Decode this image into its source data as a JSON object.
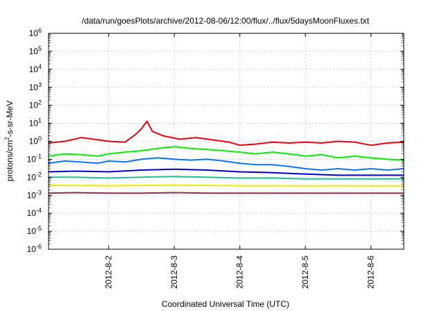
{
  "chart_data": {
    "type": "line",
    "title": "/data/run/goesPlots/archive/2012-08-06/12:00/flux/../flux/5daysMoonFluxes.txt",
    "xlabel": "Coordinated Universal Time (UTC)",
    "ylabel_parts": {
      "base": "protons/cm",
      "sup": "2",
      "rest": "-s-sr-MeV"
    },
    "y_scale": "log",
    "ylim": [
      1e-06,
      1000000.0
    ],
    "y_ticks": [
      {
        "value": 1e-06,
        "base": "10",
        "exp": "-6"
      },
      {
        "value": 1e-05,
        "base": "10",
        "exp": "-5"
      },
      {
        "value": 0.0001,
        "base": "10",
        "exp": "-4"
      },
      {
        "value": 0.001,
        "base": "10",
        "exp": "-3"
      },
      {
        "value": 0.01,
        "base": "10",
        "exp": "-2"
      },
      {
        "value": 0.1,
        "base": "10",
        "exp": "-1"
      },
      {
        "value": 1.0,
        "base": "10",
        "exp": "0"
      },
      {
        "value": 10.0,
        "base": "10",
        "exp": "1"
      },
      {
        "value": 100.0,
        "base": "10",
        "exp": "2"
      },
      {
        "value": 1000.0,
        "base": "10",
        "exp": "3"
      },
      {
        "value": 10000.0,
        "base": "10",
        "exp": "4"
      },
      {
        "value": 100000.0,
        "base": "10",
        "exp": "5"
      },
      {
        "value": 1000000.0,
        "base": "10",
        "exp": "6"
      }
    ],
    "xlim": [
      "2012-08-01T02:00",
      "2012-08-06T12:00"
    ],
    "x_ticks": [
      {
        "value": "2012-08-02T00:00",
        "label": "2012-8-2"
      },
      {
        "value": "2012-08-03T00:00",
        "label": "2012-8-3"
      },
      {
        "value": "2012-08-04T00:00",
        "label": "2012-8-4"
      },
      {
        "value": "2012-08-05T00:00",
        "label": "2012-8-5"
      },
      {
        "value": "2012-08-06T00:00",
        "label": "2012-8-6"
      }
    ],
    "grid": true,
    "legend": "none",
    "series": [
      {
        "color": "#e8000b",
        "x": [
          "2012-08-01T02:00",
          "2012-08-01T08:00",
          "2012-08-01T14:00",
          "2012-08-01T20:00",
          "2012-08-02T00:00",
          "2012-08-02T06:00",
          "2012-08-02T10:00",
          "2012-08-02T12:00",
          "2012-08-02T14:00",
          "2012-08-02T16:00",
          "2012-08-02T20:00",
          "2012-08-03T02:00",
          "2012-08-03T08:00",
          "2012-08-03T14:00",
          "2012-08-03T20:00",
          "2012-08-04T00:00",
          "2012-08-04T06:00",
          "2012-08-04T12:00",
          "2012-08-04T18:00",
          "2012-08-05T00:00",
          "2012-08-05T06:00",
          "2012-08-05T12:00",
          "2012-08-05T18:00",
          "2012-08-06T00:00",
          "2012-08-06T06:00",
          "2012-08-06T12:00"
        ],
        "values": [
          0.8,
          1.0,
          1.6,
          1.2,
          1.0,
          0.9,
          2.5,
          5.0,
          13,
          3.5,
          2.0,
          1.3,
          1.6,
          1.2,
          0.9,
          0.6,
          0.7,
          0.9,
          0.8,
          0.9,
          0.8,
          1.0,
          0.9,
          0.6,
          0.8,
          0.9
        ]
      },
      {
        "color": "#00ee00",
        "x": [
          "2012-08-01T02:00",
          "2012-08-01T08:00",
          "2012-08-01T14:00",
          "2012-08-01T20:00",
          "2012-08-02T00:00",
          "2012-08-02T06:00",
          "2012-08-02T12:00",
          "2012-08-02T18:00",
          "2012-08-03T00:00",
          "2012-08-03T06:00",
          "2012-08-03T12:00",
          "2012-08-03T18:00",
          "2012-08-04T00:00",
          "2012-08-04T06:00",
          "2012-08-04T12:00",
          "2012-08-04T18:00",
          "2012-08-05T00:00",
          "2012-08-05T06:00",
          "2012-08-05T12:00",
          "2012-08-05T18:00",
          "2012-08-06T00:00",
          "2012-08-06T06:00",
          "2012-08-06T12:00"
        ],
        "values": [
          0.15,
          0.2,
          0.18,
          0.15,
          0.2,
          0.25,
          0.3,
          0.4,
          0.5,
          0.4,
          0.35,
          0.3,
          0.25,
          0.2,
          0.25,
          0.2,
          0.15,
          0.18,
          0.12,
          0.15,
          0.12,
          0.1,
          0.09
        ]
      },
      {
        "color": "#0a74ff",
        "x": [
          "2012-08-01T02:00",
          "2012-08-01T08:00",
          "2012-08-01T14:00",
          "2012-08-01T20:00",
          "2012-08-02T00:00",
          "2012-08-02T06:00",
          "2012-08-02T12:00",
          "2012-08-02T18:00",
          "2012-08-03T00:00",
          "2012-08-03T06:00",
          "2012-08-03T12:00",
          "2012-08-03T18:00",
          "2012-08-04T00:00",
          "2012-08-04T06:00",
          "2012-08-04T12:00",
          "2012-08-04T18:00",
          "2012-08-05T00:00",
          "2012-08-05T06:00",
          "2012-08-05T12:00",
          "2012-08-05T18:00",
          "2012-08-06T00:00",
          "2012-08-06T06:00",
          "2012-08-06T12:00"
        ],
        "values": [
          0.06,
          0.08,
          0.07,
          0.06,
          0.08,
          0.07,
          0.1,
          0.12,
          0.1,
          0.09,
          0.1,
          0.08,
          0.06,
          0.05,
          0.05,
          0.04,
          0.03,
          0.025,
          0.03,
          0.025,
          0.03,
          0.025,
          0.03
        ]
      },
      {
        "color": "#0000cc",
        "x": [
          "2012-08-01T02:00",
          "2012-08-01T12:00",
          "2012-08-02T00:00",
          "2012-08-02T12:00",
          "2012-08-03T00:00",
          "2012-08-03T12:00",
          "2012-08-04T00:00",
          "2012-08-04T12:00",
          "2012-08-05T00:00",
          "2012-08-05T12:00",
          "2012-08-06T00:00",
          "2012-08-06T12:00"
        ],
        "values": [
          0.02,
          0.022,
          0.02,
          0.025,
          0.028,
          0.025,
          0.02,
          0.018,
          0.015,
          0.013,
          0.013,
          0.013
        ]
      },
      {
        "color": "#1fbf9a",
        "x": [
          "2012-08-01T02:00",
          "2012-08-01T12:00",
          "2012-08-02T00:00",
          "2012-08-02T12:00",
          "2012-08-03T00:00",
          "2012-08-03T12:00",
          "2012-08-04T00:00",
          "2012-08-04T12:00",
          "2012-08-05T00:00",
          "2012-08-05T12:00",
          "2012-08-06T00:00",
          "2012-08-06T12:00"
        ],
        "values": [
          0.01,
          0.01,
          0.009,
          0.01,
          0.011,
          0.01,
          0.009,
          0.009,
          0.008,
          0.008,
          0.008,
          0.008
        ]
      },
      {
        "color": "#f0e800",
        "x": [
          "2012-08-01T02:00",
          "2012-08-01T12:00",
          "2012-08-02T00:00",
          "2012-08-02T12:00",
          "2012-08-03T00:00",
          "2012-08-03T12:00",
          "2012-08-04T00:00",
          "2012-08-04T12:00",
          "2012-08-05T00:00",
          "2012-08-05T12:00",
          "2012-08-06T00:00",
          "2012-08-06T12:00"
        ],
        "values": [
          0.0035,
          0.0035,
          0.0034,
          0.0035,
          0.0036,
          0.0035,
          0.0034,
          0.0034,
          0.0033,
          0.0034,
          0.0033,
          0.0033
        ]
      },
      {
        "color": "#8c2a5a",
        "x": [
          "2012-08-01T02:00",
          "2012-08-01T12:00",
          "2012-08-02T00:00",
          "2012-08-02T12:00",
          "2012-08-03T00:00",
          "2012-08-03T12:00",
          "2012-08-04T00:00",
          "2012-08-04T12:00",
          "2012-08-05T00:00",
          "2012-08-05T12:00",
          "2012-08-06T00:00",
          "2012-08-06T12:00"
        ],
        "values": [
          0.0013,
          0.0014,
          0.0013,
          0.0013,
          0.0014,
          0.0013,
          0.0013,
          0.0013,
          0.0013,
          0.0013,
          0.0013,
          0.0013
        ]
      }
    ]
  }
}
